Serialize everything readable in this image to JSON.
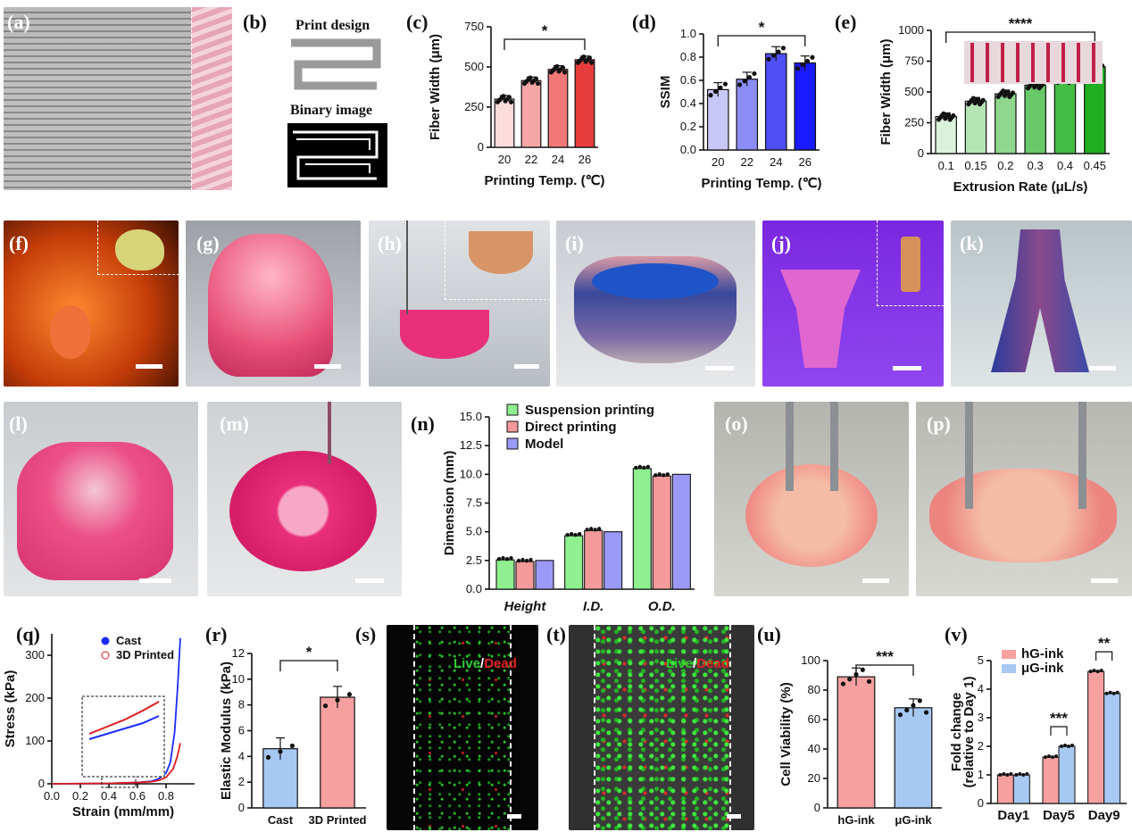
{
  "panel_labels": [
    "(a)",
    "(b)",
    "(c)",
    "(d)",
    "(e)",
    "(f)",
    "(g)",
    "(h)",
    "(i)",
    "(j)",
    "(k)",
    "(l)",
    "(m)",
    "(n)",
    "(o)",
    "(p)",
    "(q)",
    "(r)",
    "(s)",
    "(t)",
    "(u)",
    "(v)"
  ],
  "panel_b": {
    "print_design": "Print design",
    "binary_image": "Binary image"
  },
  "live_dead": {
    "live": "Live",
    "slash": "/",
    "dead": "Dead"
  },
  "colors": {
    "pink_light": "#fcdcdc",
    "red": "#e63c3c",
    "blue_light": "#c8c8f8",
    "blue": "#1a1aff",
    "green_light": "#d9f2d9",
    "green": "#1fae1f",
    "cell_pink": "#f6a0a0",
    "cell_blue": "#a6c8f2"
  },
  "chart_data": [
    {
      "id": "c",
      "type": "bar",
      "categories": [
        "20",
        "22",
        "24",
        "26"
      ],
      "values": [
        300,
        415,
        485,
        545
      ],
      "xlabel": "Printing Temp. (℃)",
      "ylabel": "Fiber Width (μm)",
      "ylim": [
        0,
        750
      ],
      "yticks": [
        "0",
        "250",
        "500",
        "750"
      ],
      "significance": "*"
    },
    {
      "id": "d",
      "type": "bar",
      "categories": [
        "20",
        "22",
        "24",
        "26"
      ],
      "values": [
        0.52,
        0.61,
        0.83,
        0.75
      ],
      "xlabel": "Printing Temp. (℃)",
      "ylabel": "SSIM",
      "ylim": [
        0,
        1.0
      ],
      "yticks": [
        "0.0",
        "0.2",
        "0.4",
        "0.6",
        "0.8",
        "1.0"
      ],
      "significance": "*"
    },
    {
      "id": "e",
      "type": "bar",
      "categories": [
        "0.1",
        "0.15",
        "0.2",
        "0.3",
        "0.4",
        "0.45"
      ],
      "values": [
        300,
        425,
        485,
        555,
        600,
        705
      ],
      "xlabel": "Extrusion Rate (μL/s)",
      "ylabel": "Fiber Width (μm)",
      "ylim": [
        0,
        1000
      ],
      "yticks": [
        "0",
        "250",
        "500",
        "750",
        "1000"
      ],
      "significance": "****"
    },
    {
      "id": "n",
      "type": "bar",
      "categories": [
        "Height",
        "I.D.",
        "O.D."
      ],
      "series": [
        {
          "name": "Suspension printing",
          "values": [
            2.55,
            4.65,
            10.5
          ]
        },
        {
          "name": "Direct printing",
          "values": [
            2.4,
            5.1,
            9.85
          ]
        },
        {
          "name": "Model",
          "values": [
            2.5,
            5.0,
            10.0
          ]
        }
      ],
      "ylabel": "Dimension (mm)",
      "ylim": [
        0,
        15
      ],
      "yticks": [
        "0.0",
        "2.5",
        "5.0",
        "7.5",
        "10.0",
        "12.5",
        "15.0"
      ]
    },
    {
      "id": "q",
      "type": "line",
      "series": [
        {
          "name": "Cast",
          "x": [
            0.0,
            0.2,
            0.4,
            0.6,
            0.7,
            0.75,
            0.8,
            0.83,
            0.86,
            0.88,
            0.9
          ],
          "y": [
            0,
            0.5,
            1,
            3,
            6,
            12,
            25,
            50,
            120,
            220,
            340
          ]
        },
        {
          "name": "3D Printed",
          "x": [
            0.0,
            0.2,
            0.4,
            0.6,
            0.7,
            0.75,
            0.8,
            0.85,
            0.88,
            0.9
          ],
          "y": [
            0,
            0.5,
            1,
            3,
            5,
            8,
            15,
            35,
            65,
            95
          ]
        }
      ],
      "xlabel": "Strain (mm/mm)",
      "ylabel": "Stress (kPa)",
      "xlim": [
        0,
        1.0
      ],
      "ylim": [
        0,
        350
      ],
      "xticks": [
        "0.0",
        "0.2",
        "0.4",
        "0.6",
        "0.8"
      ],
      "yticks": [
        "0",
        "100",
        "200",
        "300"
      ]
    },
    {
      "id": "r",
      "type": "bar",
      "categories": [
        "Cast",
        "3D  Printed"
      ],
      "values": [
        4.6,
        8.6
      ],
      "ylabel": "Elastic Modulus (kPa)",
      "ylim": [
        0,
        12
      ],
      "yticks": [
        "0",
        "2",
        "4",
        "6",
        "8",
        "10",
        "12"
      ],
      "significance": "*"
    },
    {
      "id": "u",
      "type": "bar",
      "categories": [
        "hG-ink",
        "μG-ink"
      ],
      "values": [
        89,
        68
      ],
      "ylabel": "Cell Viability (%)",
      "ylim": [
        0,
        100
      ],
      "yticks": [
        "0",
        "20",
        "40",
        "60",
        "80",
        "100"
      ],
      "significance": "***"
    },
    {
      "id": "v",
      "type": "bar",
      "categories": [
        "Day1",
        "Day5",
        "Day9"
      ],
      "series": [
        {
          "name": "hG-ink",
          "values": [
            1.0,
            1.62,
            4.62
          ]
        },
        {
          "name": "μG-ink",
          "values": [
            1.0,
            2.0,
            3.85
          ]
        }
      ],
      "ylabel": "Fold change",
      "ylabel2": "(relative to Day 1)",
      "ylim": [
        0,
        5
      ],
      "yticks": [
        "0",
        "1",
        "2",
        "3",
        "4",
        "5"
      ],
      "significance": [
        "***",
        "**"
      ]
    }
  ]
}
